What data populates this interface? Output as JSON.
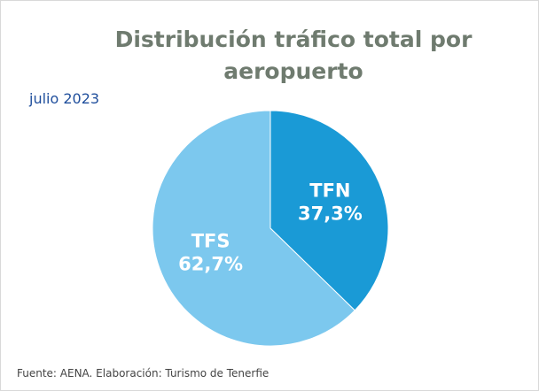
{
  "chart_data": {
    "type": "pie",
    "title": "Distribución tráfico total por aeropuerto",
    "subtitle": "julio 2023",
    "source": "Fuente: AENA. Elaboración: Turismo de Tenerfie",
    "categories": [
      "TFN",
      "TFS"
    ],
    "values": [
      37.3,
      62.7
    ],
    "value_labels": [
      "37,3%",
      "62,7%"
    ],
    "colors": [
      "#1a9ad6",
      "#7cc8ee"
    ]
  }
}
